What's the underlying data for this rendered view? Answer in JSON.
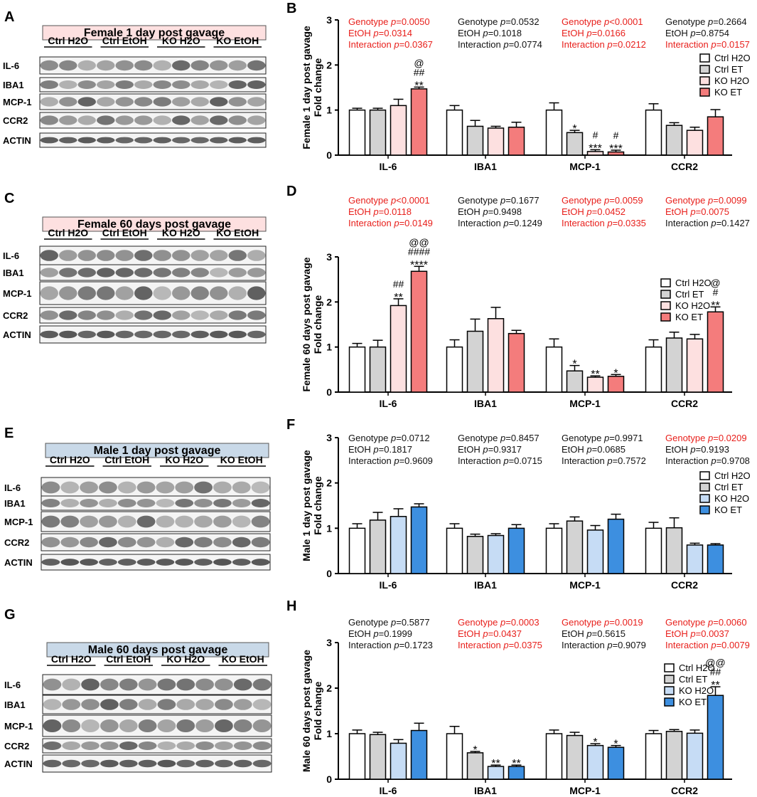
{
  "blot_panels": [
    {
      "letter": "A",
      "title": "Female 1 day post gavage",
      "sex": "female",
      "groups": [
        "Ctrl H2O",
        "Ctrl EtOH",
        "KO H2O",
        "KO EtOH"
      ],
      "proteins": [
        "IL-6",
        "IBA1",
        "MCP-1",
        "CCR2",
        "ACTIN"
      ]
    },
    {
      "letter": "C",
      "title": "Female 60 days post gavage",
      "sex": "female",
      "groups": [
        "Ctrl H2O",
        "Ctrl EtOH",
        "KO H2O",
        "KO EtOH"
      ],
      "proteins": [
        "IL-6",
        "IBA1",
        "MCP-1",
        "CCR2",
        "ACTIN"
      ]
    },
    {
      "letter": "E",
      "title": "Male 1 day post gavage",
      "sex": "male",
      "groups": [
        "Ctrl H2O",
        "Ctrl EtOH",
        "KO H2O",
        "KO EtOH"
      ],
      "proteins": [
        "IL-6",
        "IBA1",
        "MCP-1",
        "CCR2",
        "ACTIN"
      ]
    },
    {
      "letter": "G",
      "title": "Male 60 days post gavage",
      "sex": "male",
      "groups": [
        "Ctrl H2O",
        "Ctrl EtOH",
        "KO H2O",
        "KO EtOH"
      ],
      "proteins": [
        "IL-6",
        "IBA1",
        "MCP-1",
        "CCR2",
        "ACTIN"
      ]
    }
  ],
  "colors": {
    "female": {
      "ctrl_h2o": "#ffffff",
      "ctrl_et": "#d3d3d3",
      "ko_h2o": "#fde0e0",
      "ko_et": "#f47c7c",
      "title_bg": "#fde0e0"
    },
    "male": {
      "ctrl_h2o": "#ffffff",
      "ctrl_et": "#d3d3d3",
      "ko_h2o": "#c6dcf5",
      "ko_et": "#3d8fe0",
      "title_bg": "#c9d9e8"
    },
    "significant": "#e8201c",
    "normal": "#111111"
  },
  "chart_data": [
    {
      "letter": "B",
      "type": "bar",
      "sex": "female",
      "ylabel": [
        "Female 1 day post gavage",
        "Fold change"
      ],
      "ylim": [
        0,
        3
      ],
      "yticks": [
        "0",
        "1",
        "2",
        "3"
      ],
      "categories": [
        "IL-6",
        "IBA1",
        "MCP-1",
        "CCR2"
      ],
      "legend": [
        "Ctrl H2O",
        "Ctrl ET",
        "KO H2O",
        "KO ET"
      ],
      "series": [
        {
          "name": "Ctrl H2O",
          "values": [
            1.0,
            1.0,
            1.0,
            1.0
          ],
          "errors": [
            0.04,
            0.1,
            0.16,
            0.14
          ]
        },
        {
          "name": "Ctrl ET",
          "values": [
            1.0,
            0.64,
            0.5,
            0.66
          ],
          "errors": [
            0.04,
            0.13,
            0.05,
            0.06
          ]
        },
        {
          "name": "KO H2O",
          "values": [
            1.1,
            0.6,
            0.08,
            0.55
          ],
          "errors": [
            0.14,
            0.04,
            0.04,
            0.07
          ]
        },
        {
          "name": "KO ET",
          "values": [
            1.47,
            0.62,
            0.07,
            0.85
          ],
          "errors": [
            0.04,
            0.11,
            0.04,
            0.16
          ]
        }
      ],
      "stats": [
        {
          "lines": [
            "Genotype p=0.0050",
            "EtOH p=0.0314",
            "Interaction p=0.0367"
          ],
          "significant": [
            true,
            true,
            true
          ]
        },
        {
          "lines": [
            "Genotype p=0.0532",
            "EtOH p=0.1018",
            "Interaction p=0.0774"
          ],
          "significant": [
            false,
            false,
            false
          ]
        },
        {
          "lines": [
            "Genotype p<0.0001",
            "EtOH p=0.0166",
            "Interaction p=0.0212"
          ],
          "significant": [
            true,
            true,
            true
          ]
        },
        {
          "lines": [
            "Genotype p=0.2664",
            "EtOH p=0.8754",
            "Interaction p=0.0157"
          ],
          "significant": [
            false,
            false,
            true
          ]
        }
      ],
      "marks": [
        {
          "cat": 0,
          "bar": 3,
          "lines": [
            "@",
            "##",
            "**"
          ]
        },
        {
          "cat": 2,
          "bar": 1,
          "lines": [
            "*"
          ]
        },
        {
          "cat": 2,
          "bar": 2,
          "lines": [
            "#",
            "***"
          ]
        },
        {
          "cat": 2,
          "bar": 3,
          "lines": [
            "#",
            "***"
          ]
        }
      ]
    },
    {
      "letter": "D",
      "type": "bar",
      "sex": "female",
      "ylabel": [
        "Female 60 days post gavage",
        "Fold change"
      ],
      "ylim": [
        0,
        3
      ],
      "yticks": [
        "0",
        "1",
        "2",
        "3"
      ],
      "categories": [
        "IL-6",
        "IBA1",
        "MCP-1",
        "CCR2"
      ],
      "legend": [
        "Ctrl H2O",
        "Ctrl ET",
        "KO H2O",
        "KO ET"
      ],
      "series": [
        {
          "name": "Ctrl H2O",
          "values": [
            1.0,
            1.0,
            1.0,
            1.0
          ],
          "errors": [
            0.08,
            0.16,
            0.18,
            0.16
          ]
        },
        {
          "name": "Ctrl ET",
          "values": [
            1.0,
            1.35,
            0.47,
            1.2
          ],
          "errors": [
            0.15,
            0.27,
            0.12,
            0.13
          ]
        },
        {
          "name": "KO H2O",
          "values": [
            1.92,
            1.63,
            0.33,
            1.18
          ],
          "errors": [
            0.15,
            0.25,
            0.03,
            0.1
          ]
        },
        {
          "name": "KO ET",
          "values": [
            2.68,
            1.3,
            0.35,
            1.78
          ],
          "errors": [
            0.11,
            0.07,
            0.04,
            0.11
          ]
        }
      ],
      "stats": [
        {
          "lines": [
            "Genotype p<0.0001",
            "EtOH p=0.0118",
            "Interaction p=0.0149"
          ],
          "significant": [
            true,
            true,
            true
          ]
        },
        {
          "lines": [
            "Genotype p=0.1677",
            "EtOH p=0.9498",
            "Interaction p=0.1249"
          ],
          "significant": [
            false,
            false,
            false
          ]
        },
        {
          "lines": [
            "Genotype p=0.0059",
            "EtOH p=0.0452",
            "Interaction p=0.0335"
          ],
          "significant": [
            true,
            true,
            true
          ]
        },
        {
          "lines": [
            "Genotype p=0.0099",
            "EtOH p=0.0075",
            "Interaction p=0.1427"
          ],
          "significant": [
            true,
            true,
            false
          ]
        }
      ],
      "marks": [
        {
          "cat": 0,
          "bar": 2,
          "lines": [
            "##",
            "**"
          ]
        },
        {
          "cat": 0,
          "bar": 3,
          "lines": [
            "@@",
            "####",
            "****"
          ]
        },
        {
          "cat": 2,
          "bar": 1,
          "lines": [
            "*"
          ]
        },
        {
          "cat": 2,
          "bar": 2,
          "lines": [
            "**"
          ]
        },
        {
          "cat": 2,
          "bar": 3,
          "lines": [
            "*"
          ]
        },
        {
          "cat": 3,
          "bar": 3,
          "lines": [
            "@",
            "#",
            "**"
          ]
        }
      ]
    },
    {
      "letter": "F",
      "type": "bar",
      "sex": "male",
      "ylabel": [
        "Male 1 day post gavage",
        "Fold change"
      ],
      "ylim": [
        0,
        3
      ],
      "yticks": [
        "0",
        "1",
        "2",
        "3"
      ],
      "categories": [
        "IL-6",
        "IBA1",
        "MCP-1",
        "CCR2"
      ],
      "legend": [
        "Ctrl H2O",
        "Ctrl ET",
        "KO H2O",
        "KO ET"
      ],
      "series": [
        {
          "name": "Ctrl H2O",
          "values": [
            1.0,
            1.0,
            1.0,
            1.0
          ],
          "errors": [
            0.1,
            0.1,
            0.1,
            0.13
          ]
        },
        {
          "name": "Ctrl ET",
          "values": [
            1.18,
            0.82,
            1.16,
            1.01
          ],
          "errors": [
            0.17,
            0.05,
            0.09,
            0.22
          ]
        },
        {
          "name": "KO H2O",
          "values": [
            1.26,
            0.84,
            0.96,
            0.63
          ],
          "errors": [
            0.17,
            0.04,
            0.1,
            0.04
          ]
        },
        {
          "name": "KO ET",
          "values": [
            1.47,
            1.0,
            1.2,
            0.63
          ],
          "errors": [
            0.07,
            0.08,
            0.11,
            0.03
          ]
        }
      ],
      "stats": [
        {
          "lines": [
            "Genotype p=0.0712",
            "EtOH p=0.1817",
            "Interaction p=0.9609"
          ],
          "significant": [
            false,
            false,
            false
          ]
        },
        {
          "lines": [
            "Genotype p=0.8457",
            "EtOH p=0.9317",
            "Interaction p=0.0715"
          ],
          "significant": [
            false,
            false,
            false
          ]
        },
        {
          "lines": [
            "Genotype p=0.9971",
            "EtOH p=0.0685",
            "Interaction p=0.7572"
          ],
          "significant": [
            false,
            false,
            false
          ]
        },
        {
          "lines": [
            "Genotype p=0.0209",
            "EtOH p=0.9193",
            "Interaction p=0.9708"
          ],
          "significant": [
            true,
            false,
            false
          ]
        }
      ],
      "marks": []
    },
    {
      "letter": "H",
      "type": "bar",
      "sex": "male",
      "ylabel": [
        "Male 60 days post gavage",
        "Fold change"
      ],
      "ylim": [
        0,
        3
      ],
      "yticks": [
        "0",
        "1",
        "2",
        "3"
      ],
      "categories": [
        "IL-6",
        "IBA1",
        "MCP-1",
        "CCR2"
      ],
      "legend": [
        "Ctrl H2O",
        "Ctrl ET",
        "KO H2O",
        "KO ET"
      ],
      "series": [
        {
          "name": "Ctrl H2O",
          "values": [
            1.0,
            1.0,
            1.0,
            1.0
          ],
          "errors": [
            0.08,
            0.16,
            0.08,
            0.07
          ]
        },
        {
          "name": "Ctrl ET",
          "values": [
            0.98,
            0.58,
            0.96,
            1.05
          ],
          "errors": [
            0.05,
            0.03,
            0.07,
            0.04
          ]
        },
        {
          "name": "KO H2O",
          "values": [
            0.79,
            0.28,
            0.74,
            1.01
          ],
          "errors": [
            0.08,
            0.03,
            0.04,
            0.07
          ]
        },
        {
          "name": "KO ET",
          "values": [
            1.07,
            0.28,
            0.7,
            1.84
          ],
          "errors": [
            0.16,
            0.03,
            0.04,
            0.19
          ]
        }
      ],
      "stats": [
        {
          "lines": [
            "Genotype p=0.5877",
            "EtOH p=0.1999",
            "Interaction p=0.1723"
          ],
          "significant": [
            false,
            false,
            false
          ]
        },
        {
          "lines": [
            "Genotype p=0.0003",
            "EtOH p=0.0437",
            "Interaction p=0.0375"
          ],
          "significant": [
            true,
            true,
            true
          ]
        },
        {
          "lines": [
            "Genotype p=0.0019",
            "EtOH p=0.5615",
            "Interaction p=0.9079"
          ],
          "significant": [
            true,
            false,
            false
          ]
        },
        {
          "lines": [
            "Genotype p=0.0060",
            "EtOH p=0.0037",
            "Interaction p=0.0079"
          ],
          "significant": [
            true,
            true,
            true
          ]
        }
      ],
      "marks": [
        {
          "cat": 1,
          "bar": 1,
          "lines": [
            "*"
          ]
        },
        {
          "cat": 1,
          "bar": 2,
          "lines": [
            "**"
          ]
        },
        {
          "cat": 1,
          "bar": 3,
          "lines": [
            "**"
          ]
        },
        {
          "cat": 2,
          "bar": 2,
          "lines": [
            "*"
          ]
        },
        {
          "cat": 2,
          "bar": 3,
          "lines": [
            "*"
          ]
        },
        {
          "cat": 3,
          "bar": 3,
          "lines": [
            "@@",
            "##",
            "**"
          ]
        }
      ]
    }
  ]
}
